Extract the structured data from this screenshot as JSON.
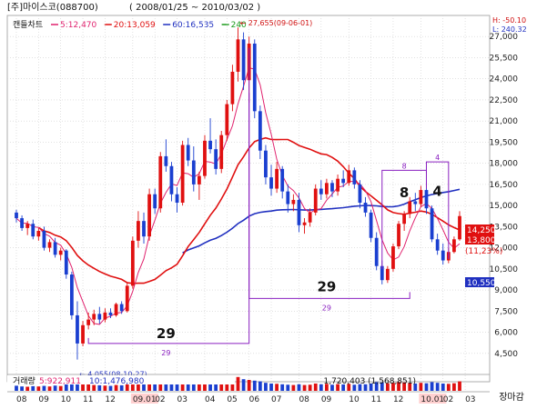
{
  "header": {
    "title": "[주]마이스코(088700)",
    "period": "( 2008/01/25 ~ 2010/03/02 )",
    "hilo_h": "H: -50.10",
    "hilo_l": "L: 240.32"
  },
  "legend": {
    "chart_type": "캔들차트",
    "ma": [
      {
        "label": "5:12,470",
        "color": "#e0226e"
      },
      {
        "label": "20:13,059",
        "color": "#e01010"
      },
      {
        "label": "60:16,535",
        "color": "#2030c0"
      },
      {
        "label": "240",
        "color": "#1a9a1a"
      }
    ]
  },
  "volume": {
    "label": "거래량",
    "items": [
      {
        "label": "5:922,911",
        "color": "#e0226e"
      },
      {
        "label": "10:1,476,980",
        "color": "#2030c0"
      }
    ],
    "readout": "1,720,403 (1,568,851)"
  },
  "corner_label": "장마감",
  "price_tags": {
    "last": "14,250",
    "ma20": "13,800",
    "pct": "(11,23%)",
    "ma60": "10,550"
  },
  "colors": {
    "up": "#e01010",
    "down": "#1a3fd0",
    "ma5": "#e0226e",
    "ma20": "#e01010",
    "ma60": "#2030c0",
    "annot": "#8a20c0",
    "grid": "#cfcfcf"
  },
  "annotations": {
    "high": "← 27,655(09-06-01)",
    "low": "← 4,055(08-10-27)",
    "big29_a": "29",
    "small29_a": "29",
    "big29_b": "29",
    "small29_b": "29",
    "big8": "8",
    "small8": "8",
    "big4": "4",
    "small4": "4"
  },
  "chart_data": {
    "type": "candlestick",
    "title": "[주]마이스코(088700)",
    "period": "2008/01/25 ~ 2010/03/02",
    "ylim": [
      3000,
      28500
    ],
    "y_ticks": [
      4500,
      6000,
      7500,
      9000,
      10500,
      12000,
      13500,
      15000,
      16500,
      18000,
      19500,
      21000,
      22500,
      24000,
      25500,
      27000
    ],
    "x_ticks": [
      {
        "label": "08",
        "i": 0,
        "highlight": false
      },
      {
        "label": "09",
        "i": 4,
        "highlight": false
      },
      {
        "label": "10",
        "i": 8,
        "highlight": false
      },
      {
        "label": "11",
        "i": 12,
        "highlight": false
      },
      {
        "label": "12",
        "i": 16,
        "highlight": false
      },
      {
        "label": "09.01",
        "i": 21,
        "highlight": true
      },
      {
        "label": "02",
        "i": 25,
        "highlight": false
      },
      {
        "label": "03",
        "i": 29,
        "highlight": false
      },
      {
        "label": "04",
        "i": 34,
        "highlight": false
      },
      {
        "label": "05",
        "i": 38,
        "highlight": false
      },
      {
        "label": "06",
        "i": 42,
        "highlight": false
      },
      {
        "label": "07",
        "i": 46,
        "highlight": false
      },
      {
        "label": "08",
        "i": 51,
        "highlight": false
      },
      {
        "label": "09",
        "i": 55,
        "highlight": false
      },
      {
        "label": "10",
        "i": 60,
        "highlight": false
      },
      {
        "label": "11",
        "i": 64,
        "highlight": false
      },
      {
        "label": "12",
        "i": 68,
        "highlight": false
      },
      {
        "label": "10.01",
        "i": 73,
        "highlight": true
      },
      {
        "label": "02",
        "i": 77,
        "highlight": false
      },
      {
        "label": "03",
        "i": 81,
        "highlight": false
      }
    ],
    "candles": [
      [
        14500,
        14700,
        13800,
        14100
      ],
      [
        14100,
        14300,
        13200,
        13400
      ],
      [
        13400,
        13900,
        12900,
        13700
      ],
      [
        13700,
        14000,
        12600,
        12800
      ],
      [
        12800,
        13400,
        12500,
        13200
      ],
      [
        13200,
        13500,
        11800,
        12000
      ],
      [
        12000,
        12600,
        11700,
        12400
      ],
      [
        12400,
        12700,
        11300,
        11500
      ],
      [
        11500,
        12000,
        11100,
        11800
      ],
      [
        11800,
        11900,
        9800,
        10100
      ],
      [
        10100,
        10300,
        6900,
        7200
      ],
      [
        7200,
        8200,
        4055,
        5200
      ],
      [
        5200,
        6800,
        5000,
        6500
      ],
      [
        6500,
        7400,
        6200,
        6900
      ],
      [
        6900,
        7600,
        6500,
        7300
      ],
      [
        7300,
        7800,
        6600,
        6900
      ],
      [
        6900,
        7700,
        6700,
        7400
      ],
      [
        7400,
        7700,
        7000,
        7200
      ],
      [
        7200,
        8100,
        7100,
        8000
      ],
      [
        8000,
        8200,
        7300,
        7500
      ],
      [
        7500,
        9500,
        7400,
        9300
      ],
      [
        9300,
        12800,
        9100,
        12500
      ],
      [
        12500,
        14600,
        12000,
        13900
      ],
      [
        13900,
        14500,
        12300,
        12800
      ],
      [
        12800,
        16200,
        12500,
        15800
      ],
      [
        15800,
        16200,
        14400,
        14800
      ],
      [
        14800,
        18800,
        14500,
        18500
      ],
      [
        18500,
        19700,
        17400,
        17800
      ],
      [
        17800,
        18100,
        15300,
        15800
      ],
      [
        15800,
        16300,
        14500,
        15200
      ],
      [
        15200,
        19600,
        15000,
        19300
      ],
      [
        19300,
        19800,
        17800,
        18200
      ],
      [
        18200,
        19200,
        16000,
        16500
      ],
      [
        16500,
        17400,
        15400,
        17100
      ],
      [
        17100,
        20000,
        16900,
        19600
      ],
      [
        19600,
        21200,
        18700,
        19000
      ],
      [
        19000,
        19700,
        17200,
        17600
      ],
      [
        17600,
        20300,
        17300,
        20000
      ],
      [
        20000,
        22500,
        19600,
        22200
      ],
      [
        22200,
        25000,
        21700,
        24500
      ],
      [
        24500,
        27655,
        23800,
        26800
      ],
      [
        26800,
        27300,
        23200,
        23900
      ],
      [
        23900,
        27000,
        22300,
        26500
      ],
      [
        26500,
        26800,
        21200,
        21700
      ],
      [
        21700,
        22100,
        18300,
        18900
      ],
      [
        18900,
        19300,
        16500,
        17000
      ],
      [
        17000,
        17900,
        15700,
        16200
      ],
      [
        16200,
        18100,
        15900,
        17600
      ],
      [
        17600,
        17800,
        15500,
        16000
      ],
      [
        16000,
        16500,
        14500,
        15100
      ],
      [
        15100,
        15800,
        14600,
        15400
      ],
      [
        15400,
        15900,
        13100,
        13600
      ],
      [
        13600,
        14100,
        13000,
        13800
      ],
      [
        13800,
        14800,
        13500,
        14500
      ],
      [
        14500,
        16500,
        14300,
        16200
      ],
      [
        16200,
        16800,
        15400,
        15800
      ],
      [
        15800,
        16900,
        15500,
        16600
      ],
      [
        16600,
        16800,
        15600,
        16000
      ],
      [
        16000,
        17200,
        15700,
        16900
      ],
      [
        16900,
        17500,
        16300,
        16600
      ],
      [
        16600,
        17900,
        16400,
        17500
      ],
      [
        17500,
        17700,
        16200,
        16500
      ],
      [
        16500,
        16800,
        14800,
        15200
      ],
      [
        15200,
        15600,
        14200,
        14500
      ],
      [
        14500,
        14700,
        12400,
        12700
      ],
      [
        12700,
        13100,
        10400,
        10700
      ],
      [
        10700,
        11100,
        9400,
        9700
      ],
      [
        9700,
        10700,
        9500,
        10500
      ],
      [
        10500,
        12300,
        10300,
        12100
      ],
      [
        12100,
        13900,
        11900,
        13700
      ],
      [
        13700,
        14600,
        13200,
        14400
      ],
      [
        14400,
        15600,
        14100,
        15300
      ],
      [
        15300,
        15900,
        14600,
        15100
      ],
      [
        15100,
        16400,
        14900,
        16100
      ],
      [
        16100,
        16700,
        14400,
        14800
      ],
      [
        14800,
        15000,
        12400,
        12600
      ],
      [
        12600,
        13000,
        11500,
        11800
      ],
      [
        11800,
        12300,
        10800,
        11100
      ],
      [
        11100,
        12000,
        10900,
        11700
      ],
      [
        11700,
        12800,
        11600,
        12600
      ],
      [
        12600,
        14600,
        12500,
        14250
      ]
    ],
    "volume": [
      0.35,
      0.3,
      0.28,
      0.32,
      0.3,
      0.34,
      0.3,
      0.36,
      0.33,
      0.45,
      0.85,
      0.95,
      0.65,
      0.45,
      0.4,
      0.38,
      0.36,
      0.34,
      0.4,
      0.38,
      0.55,
      0.8,
      0.7,
      0.6,
      0.75,
      0.55,
      0.72,
      0.6,
      0.5,
      0.45,
      0.65,
      0.55,
      0.5,
      0.48,
      0.62,
      0.58,
      0.5,
      0.55,
      0.7,
      0.85,
      0.95,
      0.8,
      0.75,
      0.7,
      0.65,
      0.55,
      0.5,
      0.48,
      0.45,
      0.42,
      0.4,
      0.45,
      0.4,
      0.42,
      0.5,
      0.45,
      0.48,
      0.42,
      0.46,
      0.44,
      0.48,
      0.42,
      0.46,
      0.45,
      0.5,
      0.6,
      0.58,
      0.52,
      0.55,
      0.6,
      0.58,
      0.55,
      0.5,
      0.55,
      0.52,
      0.6,
      0.55,
      0.5,
      0.48,
      0.52,
      0.65
    ],
    "ma5_period": 5,
    "ma20_period": 20,
    "ma60_period": 60
  }
}
